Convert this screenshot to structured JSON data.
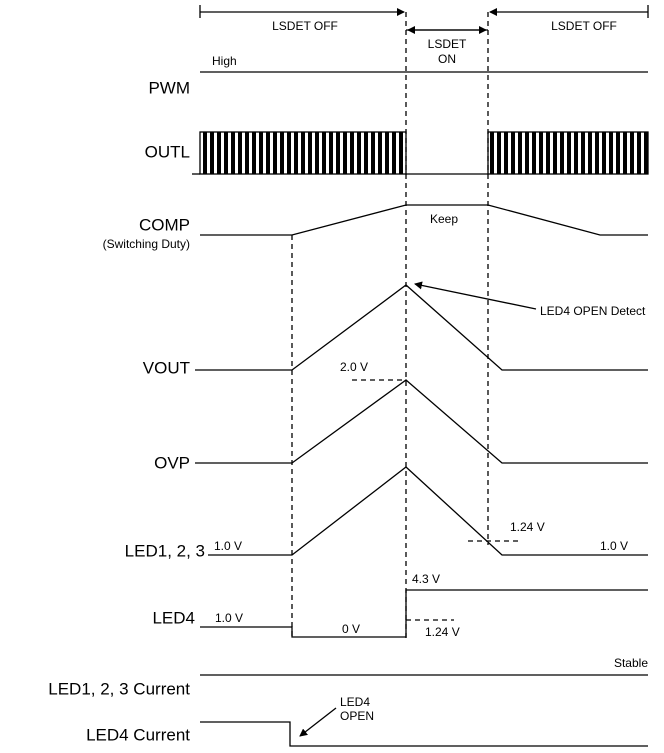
{
  "phases": [
    "LSDET OFF",
    "LSDET",
    "ON",
    "LSDET OFF"
  ],
  "signals": [
    "PWM",
    "OUTL",
    "COMP",
    "VOUT",
    "OVP",
    "LED1, 2, 3",
    "LED4",
    "LED1, 2, 3 Current",
    "LED4 Current"
  ],
  "comp_subtitle": "(Switching Duty)",
  "annotations": [
    "High",
    "Keep",
    "LED4 OPEN Detect",
    "2.0 V",
    "1.0 V",
    "1.24 V",
    "1.0 V",
    "1.0 V",
    "0 V",
    "4.3 V",
    "1.24 V",
    "Stable",
    "LED4",
    "OPEN"
  ]
}
